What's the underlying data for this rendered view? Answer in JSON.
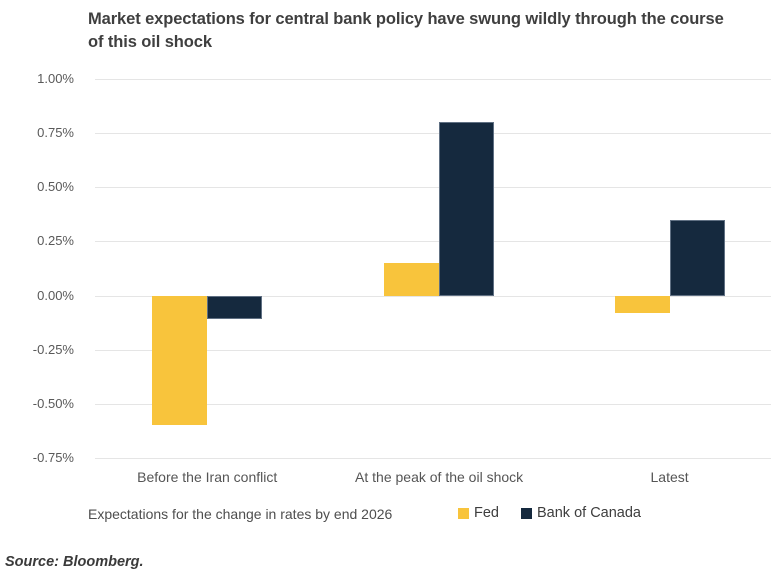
{
  "title": "Market expectations for central bank policy have swung wildly through the course of this oil shock",
  "chart_data": {
    "type": "bar",
    "categories": [
      "Before the Iran conflict",
      "At the peak of the oil shock",
      "Latest"
    ],
    "series": [
      {
        "name": "Fed",
        "color": "#F8C43C",
        "values": [
          -0.6,
          0.15,
          -0.08
        ]
      },
      {
        "name": "Bank of Canada",
        "color": "#15293E",
        "values": [
          -0.11,
          0.8,
          0.35
        ]
      }
    ],
    "title": "Market expectations for central bank policy have swung wildly through the course of this oil shock",
    "xlabel": "",
    "ylabel": "",
    "unit": "%",
    "ylim": [
      -0.75,
      1.0
    ],
    "y_ticks": [
      {
        "value": 1.0,
        "label": "1.00%"
      },
      {
        "value": 0.75,
        "label": "0.75%"
      },
      {
        "value": 0.5,
        "label": "0.50%"
      },
      {
        "value": 0.25,
        "label": "0.25%"
      },
      {
        "value": 0.0,
        "label": "0.00%"
      },
      {
        "value": -0.25,
        "label": "-0.25%"
      },
      {
        "value": -0.5,
        "label": "-0.50%"
      },
      {
        "value": -0.75,
        "label": "-0.75%"
      }
    ],
    "grid": true,
    "legend_position": "bottom",
    "caption": "Expectations for the change in rates by end 2026"
  },
  "source": "Source: Bloomberg."
}
